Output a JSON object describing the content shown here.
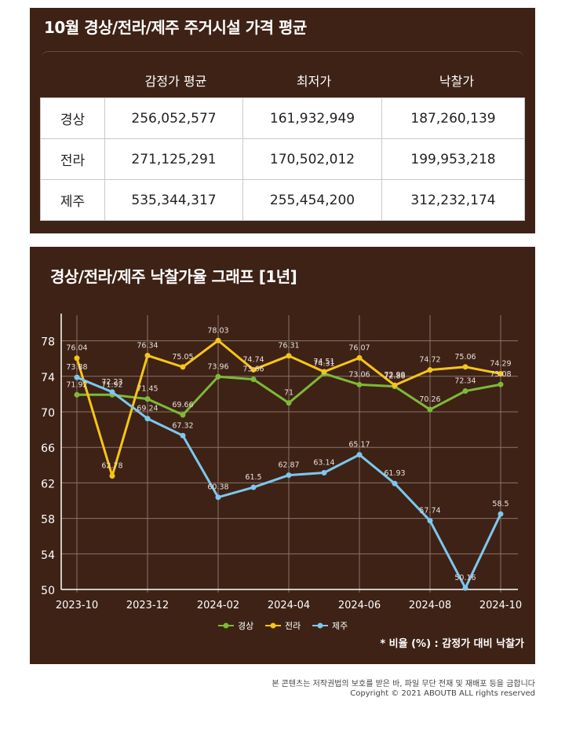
{
  "table_section": {
    "title": "10월 경상/전라/제주 주거시설 가격 평균",
    "headers": [
      "감정가 평균",
      "최저가",
      "낙찰가"
    ],
    "rows": [
      {
        "region": "경상",
        "values": [
          "256,052,577",
          "161,932,949",
          "187,260,139"
        ]
      },
      {
        "region": "전라",
        "values": [
          "271,125,291",
          "170,502,012",
          "199,953,218"
        ]
      },
      {
        "region": "제주",
        "values": [
          "535,344,317",
          "255,454,200",
          "312,232,174"
        ]
      }
    ]
  },
  "chart_section": {
    "title": "경상/전라/제주 낙찰가율 그래프 [1년]",
    "note": "* 비율 (%) : 감정가 대비 낙찰가"
  },
  "chart_data": {
    "type": "line",
    "x": [
      "2023-10",
      "2023-11",
      "2023-12",
      "2024-01",
      "2024-02",
      "2024-03",
      "2024-04",
      "2024-05",
      "2024-06",
      "2024-07",
      "2024-08",
      "2024-09",
      "2024-10"
    ],
    "x_tick_labels": [
      "2023-10",
      "2023-12",
      "2024-02",
      "2024-04",
      "2024-06",
      "2024-08",
      "2024-10"
    ],
    "ylim": [
      50,
      80
    ],
    "yticks": [
      50,
      54,
      58,
      62,
      66,
      70,
      74,
      78
    ],
    "grid": true,
    "legend_position": "bottom",
    "series": [
      {
        "name": "경상",
        "color": "#7dba38",
        "values": [
          71.92,
          71.92,
          71.45,
          69.66,
          73.96,
          73.66,
          71,
          74.31,
          73.06,
          72.86,
          70.26,
          72.34,
          73.08
        ]
      },
      {
        "name": "전라",
        "color": "#f5c518",
        "values": [
          76.04,
          62.78,
          76.34,
          75.05,
          78.03,
          74.74,
          76.31,
          74.51,
          76.07,
          72.99,
          74.72,
          75.06,
          74.29
        ]
      },
      {
        "name": "제주",
        "color": "#7cc8ee",
        "values": [
          73.88,
          72.23,
          69.24,
          67.32,
          60.38,
          61.5,
          62.87,
          63.14,
          65.17,
          61.93,
          57.74,
          50.16,
          58.5
        ]
      }
    ]
  },
  "footer": {
    "notice": "본 콘텐츠는 저작권법의 보호를 받은 바, 파일 무단 전재 및 재배포 등을 금합니다",
    "copyright": "Copyright © 2021 ABOUTB ALL rights reserved"
  }
}
